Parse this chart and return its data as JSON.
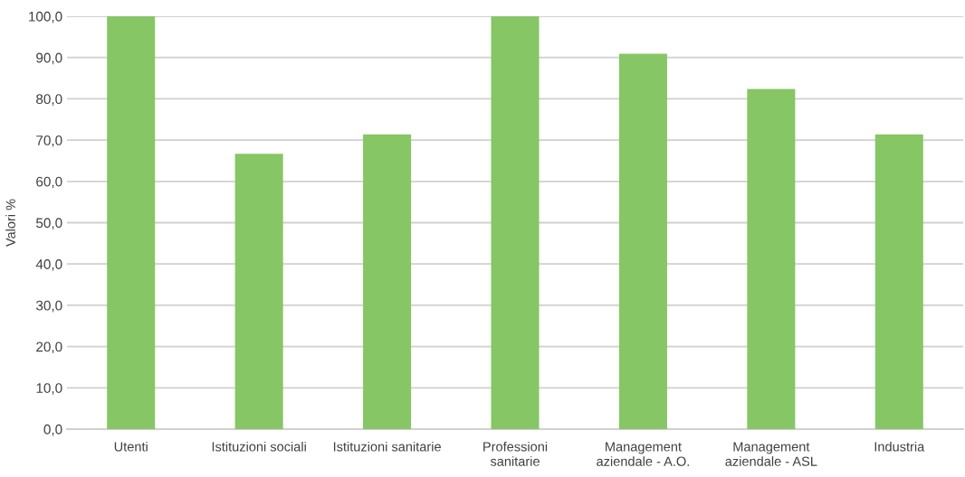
{
  "chart_data": {
    "type": "bar",
    "ylabel": "Valori %",
    "categories": [
      "Utenti",
      "Istituzioni sociali",
      "Istituzioni sanitarie",
      "Professioni\nsanitarie",
      "Management\naziendale - A.O.",
      "Management\naziendale - ASL",
      "Industria"
    ],
    "values": [
      100,
      66.7,
      71.4,
      100,
      90.9,
      82.4,
      71.4
    ],
    "color": "#86c665",
    "ylim": [
      0,
      100
    ],
    "yticks": [
      {
        "value": 0,
        "label": "0,0"
      },
      {
        "value": 10,
        "label": "10,0"
      },
      {
        "value": 20,
        "label": "20,0"
      },
      {
        "value": 30,
        "label": "30,0"
      },
      {
        "value": 40,
        "label": "40,0"
      },
      {
        "value": 50,
        "label": "50,0"
      },
      {
        "value": 60,
        "label": "60,0"
      },
      {
        "value": 70,
        "label": "70,0"
      },
      {
        "value": 80,
        "label": "80,0"
      },
      {
        "value": 90,
        "label": "90,0"
      },
      {
        "value": 100,
        "label": "100,0"
      }
    ],
    "grid": "y"
  }
}
